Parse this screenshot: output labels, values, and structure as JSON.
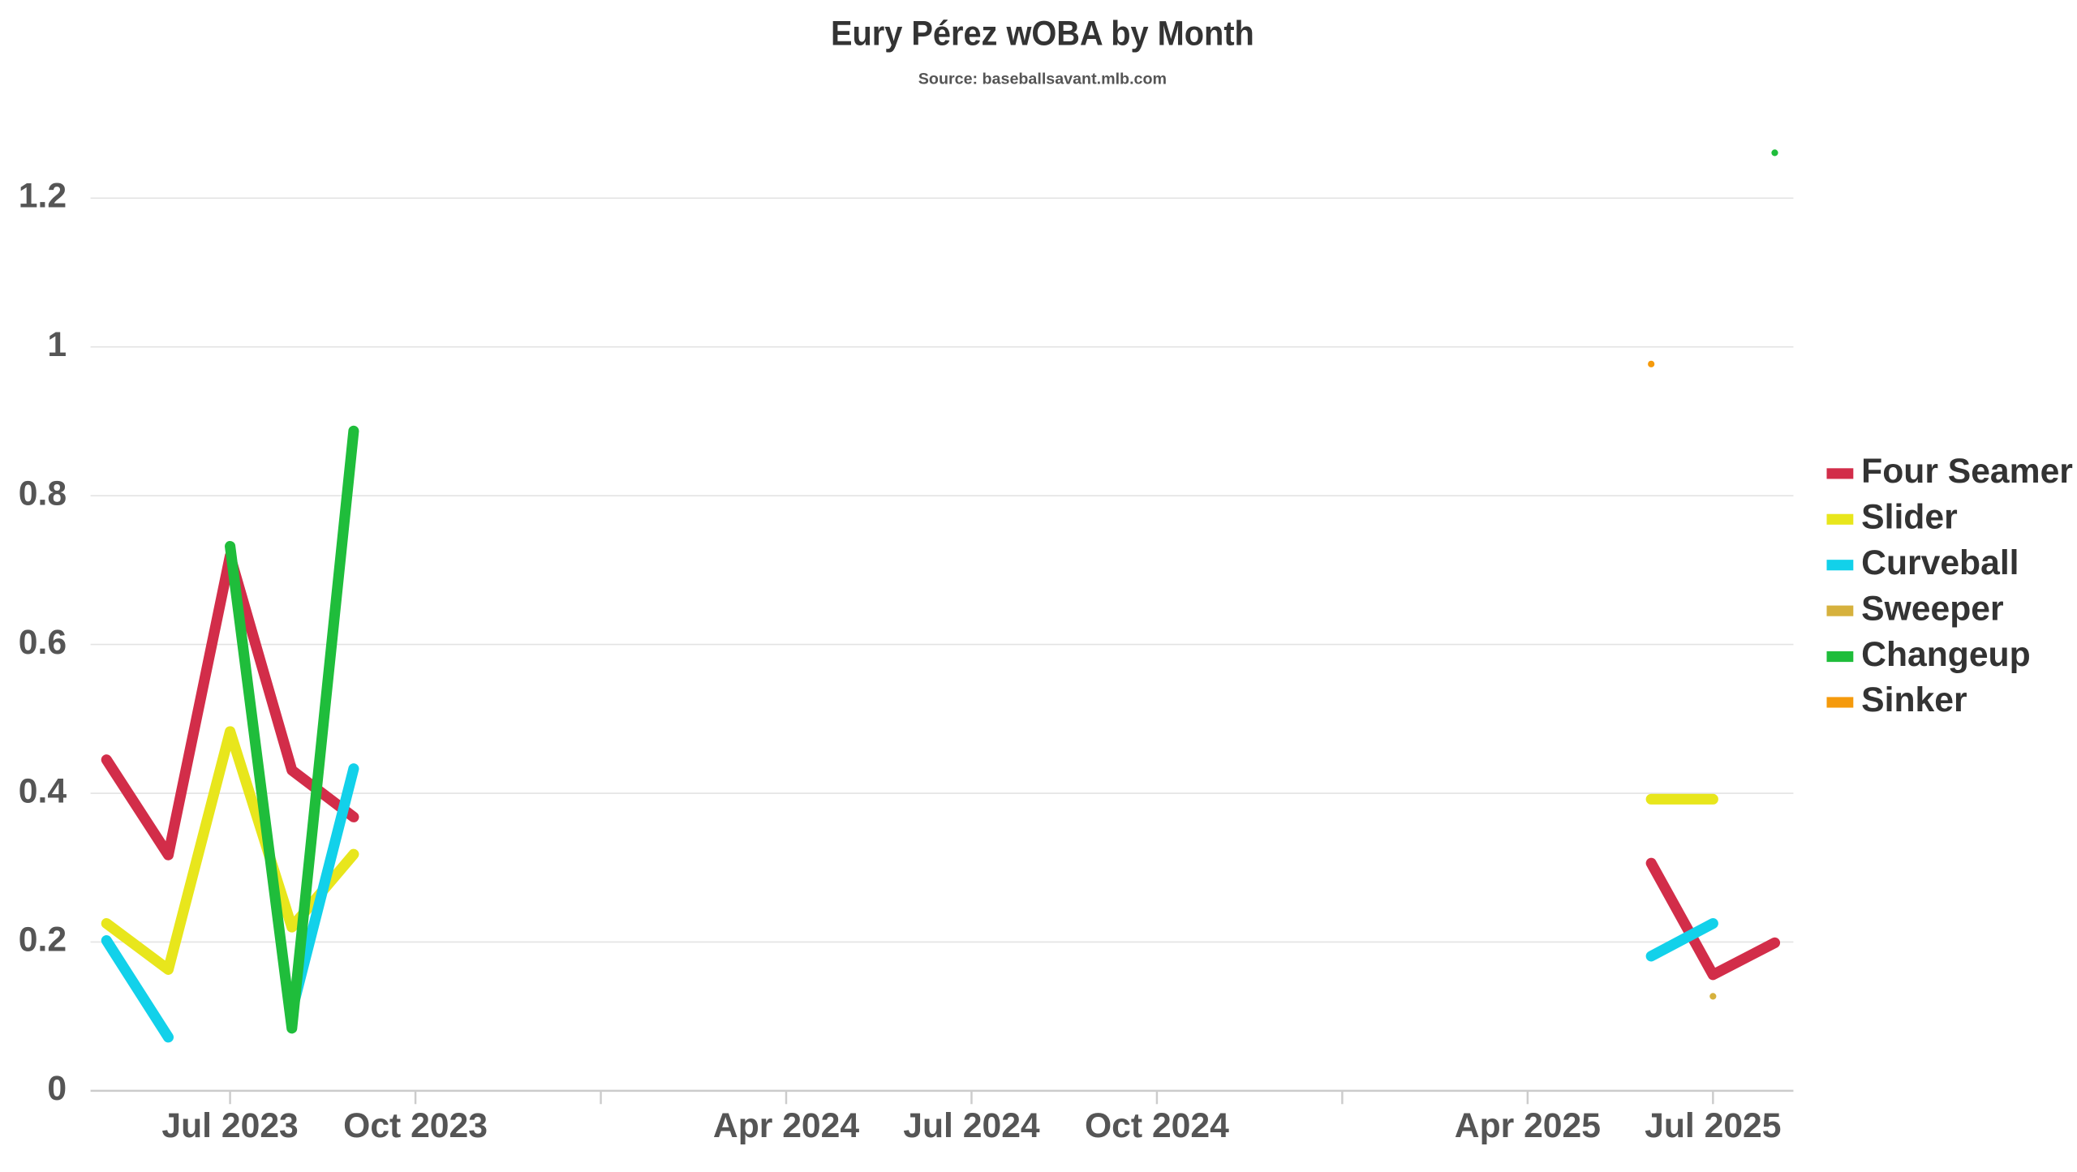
{
  "chart_data": {
    "type": "line",
    "title": "Eury Pérez wOBA by Month",
    "subtitle": "Source: baseballsavant.mlb.com",
    "x": [
      "2023-05",
      "2023-06",
      "2023-07",
      "2023-08",
      "2023-09",
      "2025-06",
      "2025-07",
      "2025-08"
    ],
    "series": [
      {
        "name": "Four Seamer",
        "color": "#d22d49",
        "values": [
          0.445,
          0.317,
          0.719,
          0.431,
          0.368,
          0.306,
          0.156,
          0.199
        ]
      },
      {
        "name": "Slider",
        "color": "#e8e61c",
        "values": [
          0.225,
          0.163,
          0.483,
          0.22,
          0.318,
          0.392,
          0.392,
          null
        ]
      },
      {
        "name": "Curveball",
        "color": "#12d1ea",
        "values": [
          0.202,
          0.072,
          null,
          0.107,
          0.433,
          0.181,
          0.225,
          null
        ]
      },
      {
        "name": "Sweeper",
        "color": "#d6b13d",
        "values": [
          null,
          null,
          null,
          null,
          null,
          null,
          0.127,
          null
        ]
      },
      {
        "name": "Changeup",
        "color": "#1fbd3b",
        "values": [
          null,
          null,
          0.732,
          0.084,
          0.887,
          null,
          null,
          1.261
        ]
      },
      {
        "name": "Sinker",
        "color": "#f59a0c",
        "values": [
          null,
          null,
          null,
          null,
          null,
          0.977,
          null,
          null
        ]
      }
    ],
    "xlim": [
      "2023-05",
      "2025-08"
    ],
    "xticks": [
      {
        "value": "2023-07",
        "label": "Jul 2023"
      },
      {
        "value": "2023-10",
        "label": "Oct 2023"
      },
      {
        "value": "2024-01",
        "label": null
      },
      {
        "value": "2024-04",
        "label": "Apr 2024"
      },
      {
        "value": "2024-07",
        "label": "Jul 2024"
      },
      {
        "value": "2024-10",
        "label": "Oct 2024"
      },
      {
        "value": "2025-01",
        "label": null
      },
      {
        "value": "2025-04",
        "label": "Apr 2025"
      },
      {
        "value": "2025-07",
        "label": "Jul 2025"
      }
    ],
    "ylim": [
      0,
      1.3
    ],
    "yticks": [
      0,
      0.2,
      0.4,
      0.6,
      0.8,
      1,
      1.2
    ],
    "grid": true,
    "legend": "right"
  }
}
